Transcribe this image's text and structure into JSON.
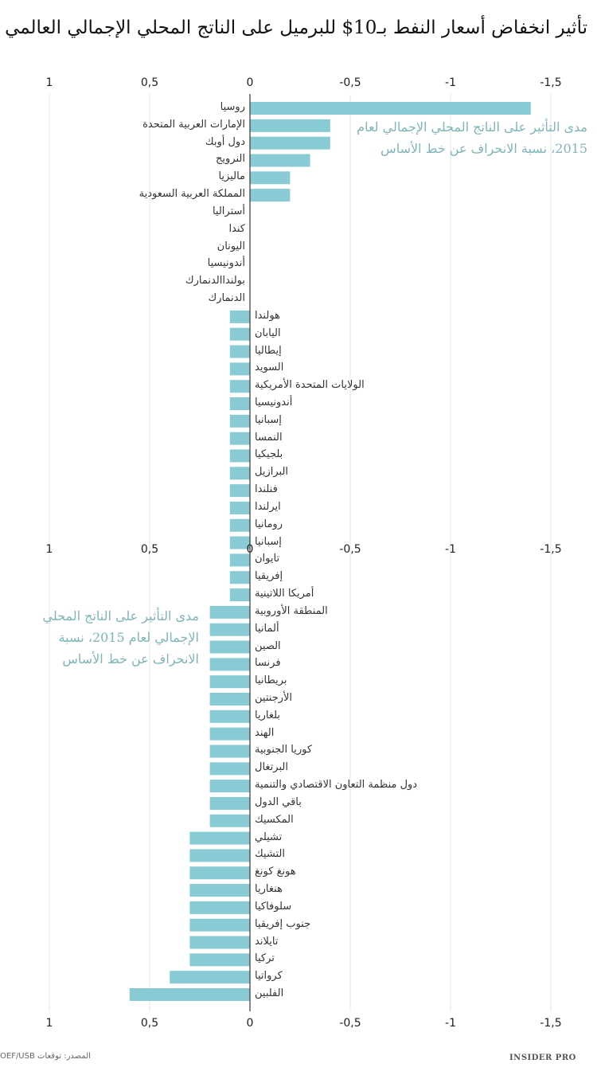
{
  "title": "تأثير انخفاض أسعار النفط بـ10$ للبرميل على الناتج المحلي الإجمالي العالمي",
  "source": "المصدر: توقعات OEF/USB",
  "brand": "INSIDER PRO",
  "colors": {
    "bar": "#88cbd4",
    "annotation": "#7fb5b8",
    "grid": "#e6e6e6",
    "axis": "#444444"
  },
  "chart_data": {
    "type": "bar",
    "orientation": "horizontal",
    "x_axis_reversed": true,
    "xlim": [
      1,
      -1.5
    ],
    "ticks": [
      "1",
      "0,5",
      "0",
      "-0,5",
      "-1",
      "-1,5"
    ],
    "tick_values": [
      1,
      0.5,
      0,
      -0.5,
      -1,
      -1.5
    ],
    "grid": true,
    "annotation": "مدى التأثير على الناتج المحلي الإجمالي لعام 2015، نسبة الانحراف عن خط الأساس",
    "annotation_top_lines": [
      "مدى التأثير على الناتج المحلي الإجمالي لعام",
      "2015، نسبة الانحراف عن خط الأساس"
    ],
    "annotation_mid_lines": [
      "مدى التأثير على الناتج المحلي",
      "الإجمالي لعام 2015، نسبة",
      "الانحراف عن خط الأساس"
    ],
    "categories": [
      "روسيا",
      "الإمارات العربية المتحدة",
      "دول أوبك",
      "النرويج",
      "ماليزيا",
      "المملكة العربية السعودية",
      "أستراليا",
      "كندا",
      "اليونان",
      "أندونيسيا",
      "بولنداالدنمارك",
      "الدنمارك",
      "هولندا",
      "اليابان",
      "إيطاليا",
      "السويد",
      "الولايات المتحدة الأمريكية",
      "أندونيسيا",
      "إسبانيا",
      "النمسا",
      "بلجيكيا",
      "البرازيل",
      "فنلندا",
      "ايرلندا",
      "رومانيا",
      "إسبانيا",
      "تايوان",
      "إفريقيا",
      "أمريكا اللاتينية",
      "المنطقة الأوروبية",
      "ألمانيا",
      "الصين",
      "فرنسا",
      "بريطانيا",
      "الأرجنتين",
      "بلغاريا",
      "الهند",
      "كوريا الجنوبية",
      "البرتغال",
      "دول منظمة التعاون الاقتصادي والتنمية",
      "باقي الدول",
      "المكسيك",
      "تشيلي",
      "التشيك",
      "هونغ كونغ",
      "هنغاريا",
      "سلوفاكيا",
      "جنوب إفريقيا",
      "تايلاند",
      "تركيا",
      "كرواتيا",
      "الفلبين"
    ],
    "values": [
      -1.4,
      -0.4,
      -0.4,
      -0.3,
      -0.2,
      -0.2,
      0,
      0,
      0,
      0,
      0,
      0,
      0.1,
      0.1,
      0.1,
      0.1,
      0.1,
      0.1,
      0.1,
      0.1,
      0.1,
      0.1,
      0.1,
      0.1,
      0.1,
      0.1,
      0.1,
      0.1,
      0.1,
      0.2,
      0.2,
      0.2,
      0.2,
      0.2,
      0.2,
      0.2,
      0.2,
      0.2,
      0.2,
      0.2,
      0.2,
      0.2,
      0.3,
      0.3,
      0.3,
      0.3,
      0.3,
      0.3,
      0.3,
      0.3,
      0.4,
      0.6
    ]
  }
}
